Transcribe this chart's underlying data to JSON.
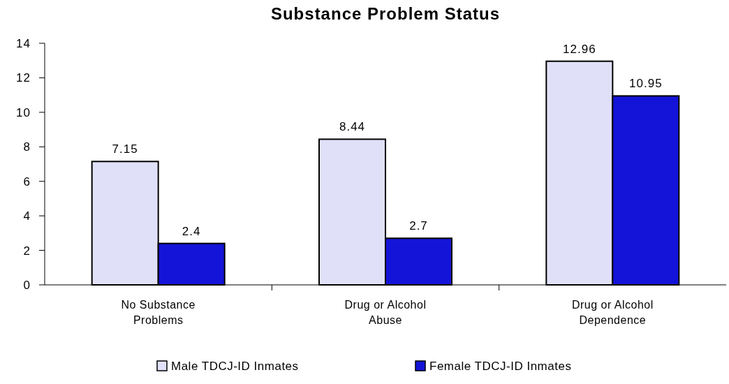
{
  "chart_data": {
    "type": "bar",
    "title": "Substance Problem Status",
    "categories": [
      "No Substance Problems",
      "Drug or Alcohol Abuse",
      "Drug or Alcohol Dependence"
    ],
    "series": [
      {
        "name": "Male TDCJ-ID Inmates",
        "color": "#e0e0f8",
        "values": [
          7.15,
          8.44,
          12.96
        ]
      },
      {
        "name": "Female TDCJ-ID Inmates",
        "color": "#1414d8",
        "values": [
          2.4,
          2.7,
          10.95
        ]
      }
    ],
    "ylim": [
      0,
      14
    ],
    "yticks": [
      0,
      2,
      4,
      6,
      8,
      10,
      12,
      14
    ],
    "grid": false,
    "legend": "bottom",
    "data_labels": true
  }
}
